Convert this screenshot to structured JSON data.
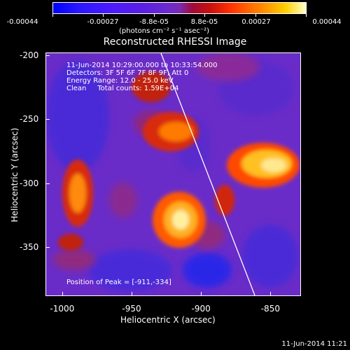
{
  "colorbar": {
    "ticks": [
      "-0.00044",
      "-0.00027",
      "-8.8e-05",
      "8.8e-05",
      "0.00027",
      "0.00044"
    ],
    "units": "(photons cm⁻² s⁻¹ asec⁻²)"
  },
  "title": "Reconstructed RHESSI Image",
  "info": {
    "time_range": "11-Jun-2014 10:29:00.000 to 10:33:54.000",
    "detectors": "Detectors: 3F 5F 6F 7F 8F 9F, Att 0",
    "energy": "Energy Range: 12.0 - 25.0 keV",
    "clean": "Clean     Total counts: 1.59E+04"
  },
  "peak_label": "Position of Peak = [-911,-334]",
  "axes": {
    "xlabel": "Heliocentric X (arcsec)",
    "ylabel": "Heliocentric Y (arcsec)",
    "xlim": [
      -1012,
      -828
    ],
    "ylim": [
      -388,
      -198
    ],
    "xticks": [
      "-1000",
      "-950",
      "-900",
      "-850"
    ],
    "xtick_values": [
      -1000,
      -950,
      -900,
      -850
    ],
    "yticks": [
      "-200",
      "-250",
      "-300",
      "-350"
    ],
    "ytick_values": [
      -200,
      -250,
      -300,
      -350
    ]
  },
  "timestamp": "11-Jun-2014 11:21",
  "colors": {
    "background": "#000000",
    "limb_line": "#ffffff",
    "low_flux": "#6a2cc8",
    "high_flux": "#ffe060"
  }
}
